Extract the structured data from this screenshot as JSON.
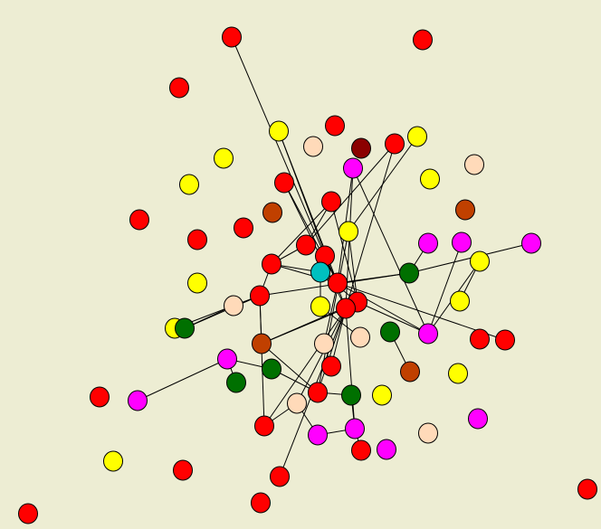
{
  "nodes": [
    "#ff0000",
    "#ff0000",
    "#ff0000",
    "#ff0000",
    "#ff0000",
    "#ff0000",
    "#ff0000",
    "#ff0000",
    "#ff0000",
    "#ff0000",
    "#ff0000",
    "#ff0000",
    "#ff0000",
    "#ff0000",
    "#ff0000",
    "#ff0000",
    "#ff0000",
    "#ff0000",
    "#ff0000",
    "#ff0000",
    "#ff0000",
    "#ff0000",
    "#ff0000",
    "#ff0000",
    "#ff0000",
    "#ff0000",
    "#ff0000",
    "#ff0000",
    "#ff0000",
    "#8b0000",
    "#ffff00",
    "#ffff00",
    "#ffff00",
    "#ffff00",
    "#ffff00",
    "#ffff00",
    "#ffff00",
    "#ffff00",
    "#ffff00",
    "#ffff00",
    "#ffff00",
    "#ffff00",
    "#ffff00",
    "#ffff00",
    "#ffdab9",
    "#ffdab9",
    "#ffdab9",
    "#ffdab9",
    "#ffdab9",
    "#ffdab9",
    "#ffdab9",
    "#c04000",
    "#c04000",
    "#c04000",
    "#c04000",
    "#ff00ff",
    "#ff00ff",
    "#ff00ff",
    "#ff00ff",
    "#ff00ff",
    "#ff00ff",
    "#ff00ff",
    "#ff00ff",
    "#ff00ff",
    "#ff00ff",
    "#ff00ff",
    "#007000",
    "#007000",
    "#007000",
    "#007000",
    "#007000",
    "#007000",
    "#00c0c0"
  ],
  "edges": [
    [
      0,
      11
    ],
    [
      5,
      13
    ],
    [
      5,
      16
    ],
    [
      30,
      16
    ],
    [
      30,
      13
    ],
    [
      55,
      16
    ],
    [
      55,
      13
    ],
    [
      55,
      59
    ],
    [
      4,
      10
    ],
    [
      31,
      35
    ],
    [
      6,
      12
    ],
    [
      6,
      15
    ],
    [
      6,
      10
    ],
    [
      12,
      13
    ],
    [
      12,
      14
    ],
    [
      12,
      72
    ],
    [
      12,
      10
    ],
    [
      11,
      72
    ],
    [
      11,
      13
    ],
    [
      72,
      15
    ],
    [
      72,
      38
    ],
    [
      13,
      18
    ],
    [
      13,
      59
    ],
    [
      66,
      58
    ],
    [
      14,
      66
    ],
    [
      13,
      66
    ],
    [
      15,
      59
    ],
    [
      57,
      59
    ],
    [
      36,
      59
    ],
    [
      14,
      67
    ],
    [
      14,
      46
    ],
    [
      14,
      53
    ],
    [
      14,
      22
    ],
    [
      46,
      40
    ],
    [
      46,
      67
    ],
    [
      53,
      16
    ],
    [
      53,
      15
    ],
    [
      53,
      21
    ],
    [
      60,
      69
    ],
    [
      60,
      61
    ],
    [
      60,
      70
    ],
    [
      69,
      21
    ],
    [
      22,
      16
    ],
    [
      22,
      49
    ],
    [
      49,
      16
    ],
    [
      49,
      62
    ],
    [
      62,
      63
    ],
    [
      63,
      71
    ],
    [
      63,
      16
    ],
    [
      23,
      63
    ],
    [
      21,
      16
    ],
    [
      21,
      71
    ],
    [
      19,
      16
    ],
    [
      19,
      48
    ],
    [
      48,
      13
    ],
    [
      25,
      16
    ],
    [
      47,
      38
    ],
    [
      54,
      68
    ],
    [
      35,
      15
    ],
    [
      35,
      21
    ],
    [
      4,
      16
    ],
    [
      56,
      66
    ],
    [
      39,
      36
    ]
  ]
}
